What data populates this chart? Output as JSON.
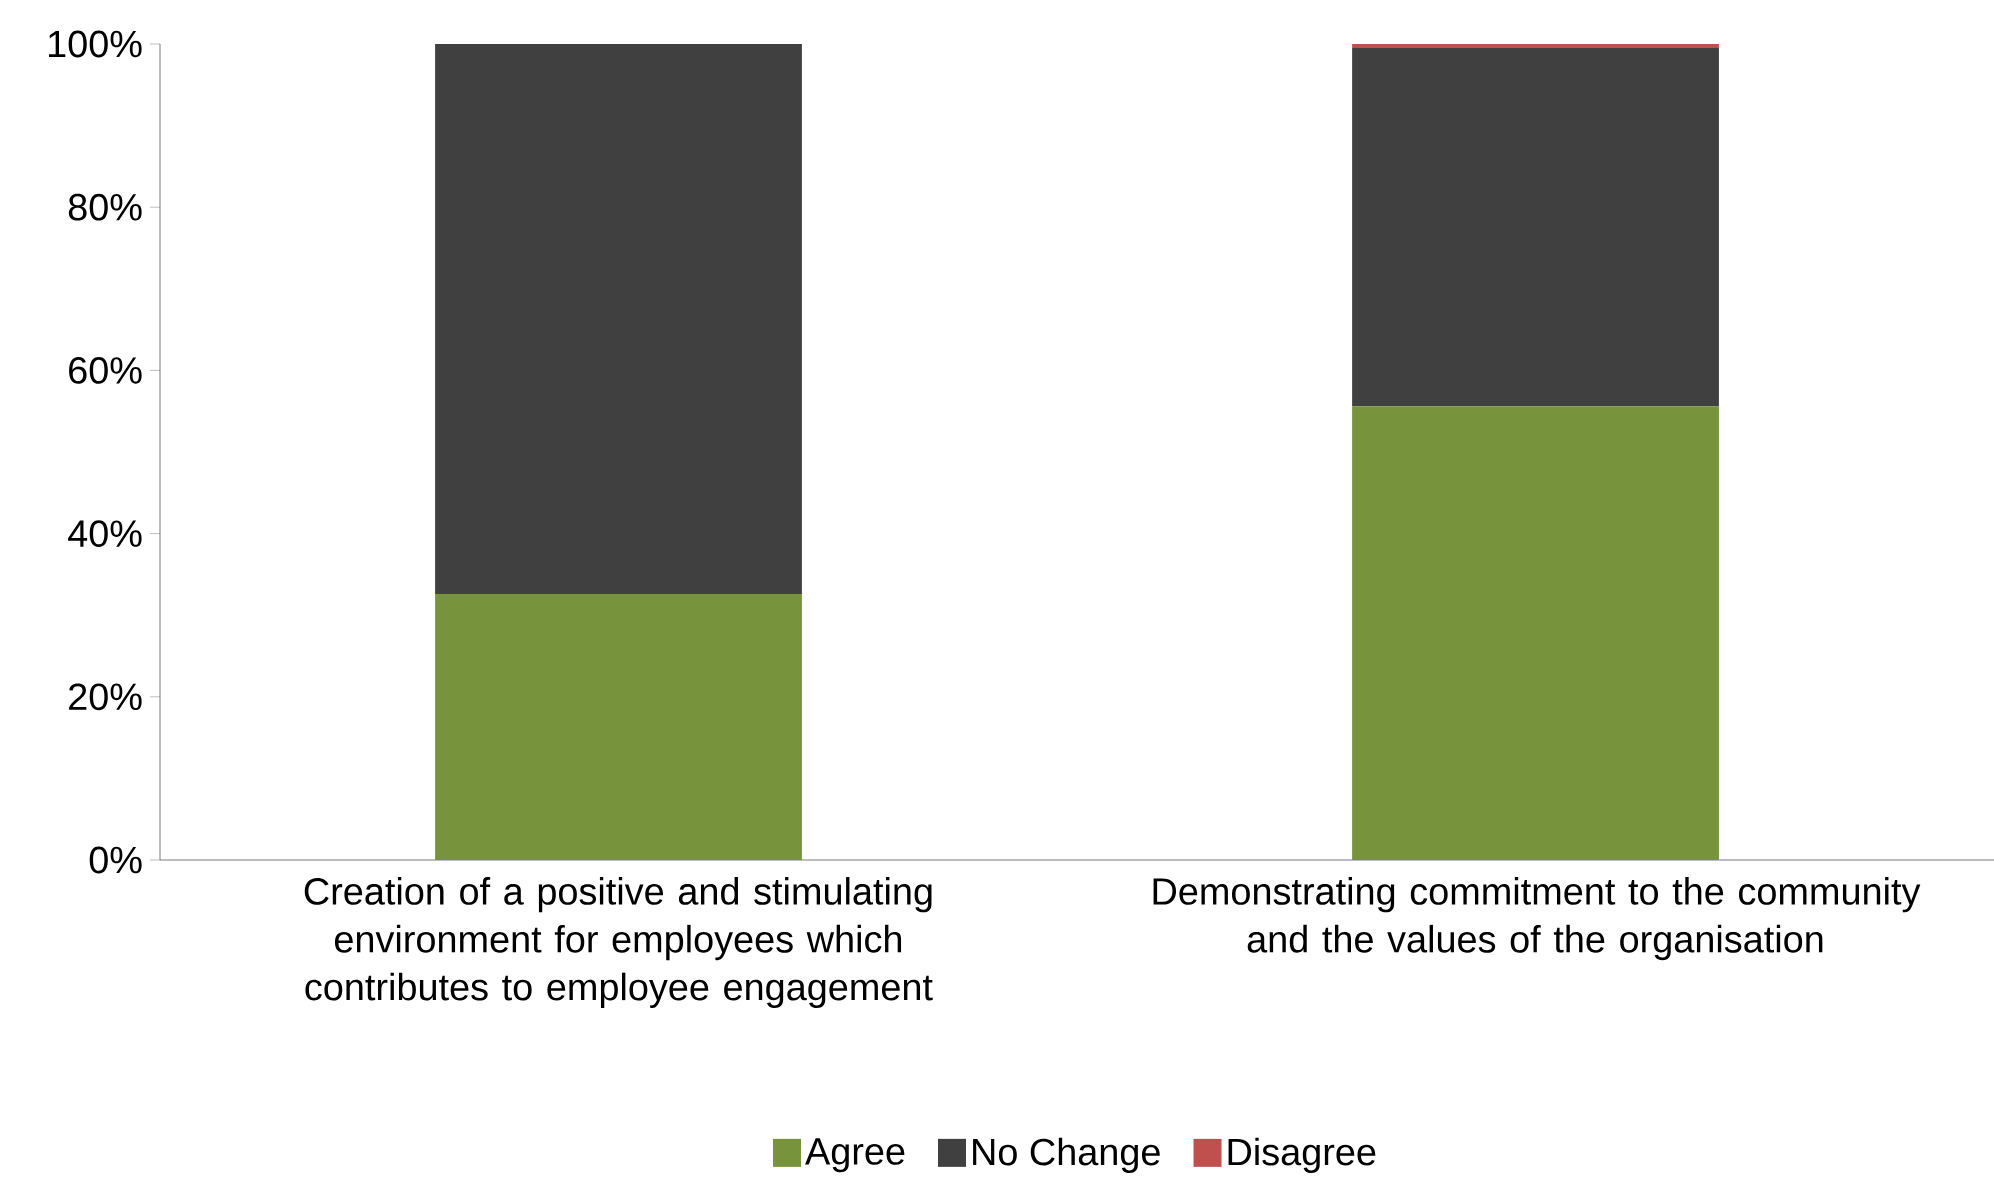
{
  "chart_data": {
    "type": "bar",
    "stacked": true,
    "legend": "bottom",
    "grid": false,
    "categories": [
      "Creation of a positive and stimulating environment for employees which contributes to employee engagement",
      "Demonstrating commitment to the community and the values of the organisation"
    ],
    "series": [
      {
        "name": "Agree",
        "color": "#77933c",
        "values": [
          32.6,
          55.6
        ]
      },
      {
        "name": "No Change",
        "color": "#404040",
        "values": [
          67.4,
          43.9
        ]
      },
      {
        "name": "Disagree",
        "color": "#c0504d",
        "values": [
          0,
          0.5
        ]
      }
    ],
    "ylim": [
      0,
      100
    ],
    "yticks": [
      {
        "value": 0,
        "label": "0%"
      },
      {
        "value": 20,
        "label": "20%"
      },
      {
        "value": 40,
        "label": "40%"
      },
      {
        "value": 60,
        "label": "60%"
      },
      {
        "value": 80,
        "label": "80%"
      },
      {
        "value": 100,
        "label": "100%"
      }
    ]
  }
}
